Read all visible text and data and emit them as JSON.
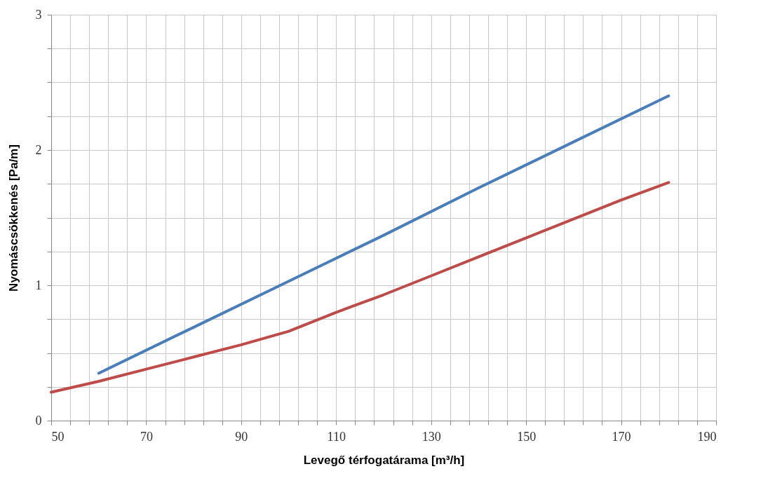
{
  "chart_data": {
    "type": "line",
    "xlabel": "Levegő térfogatárama [m³/h]",
    "ylabel": "Nyomáscsökkenés [Pa/m]",
    "series": [
      {
        "color": "#4a7ebb",
        "x": [
          60,
          80,
          100,
          120,
          140,
          160,
          180
        ],
        "values": [
          0.35,
          0.69,
          1.03,
          1.37,
          1.72,
          2.06,
          2.4
        ]
      },
      {
        "color": "#be4b48",
        "x": [
          50,
          60,
          70,
          80,
          90,
          100,
          110,
          120,
          130,
          140,
          150,
          160,
          170,
          180
        ],
        "values": [
          0.21,
          0.29,
          0.38,
          0.47,
          0.56,
          0.66,
          0.8,
          0.93,
          1.07,
          1.21,
          1.35,
          1.49,
          1.63,
          1.76
        ]
      }
    ],
    "xlim": [
      50,
      190
    ],
    "xticks": [
      50,
      {
        "value": 54,
        "label": null
      },
      {
        "value": 58,
        "label": null
      },
      {
        "value": 62,
        "label": null
      },
      {
        "value": 66,
        "label": null
      },
      70,
      {
        "value": 74,
        "label": null
      },
      {
        "value": 78,
        "label": null
      },
      {
        "value": 82,
        "label": null
      },
      {
        "value": 86,
        "label": null
      },
      90,
      {
        "value": 94,
        "label": null
      },
      {
        "value": 98,
        "label": null
      },
      {
        "value": 102,
        "label": null
      },
      {
        "value": 106,
        "label": null
      },
      110,
      {
        "value": 114,
        "label": null
      },
      {
        "value": 118,
        "label": null
      },
      {
        "value": 122,
        "label": null
      },
      {
        "value": 126,
        "label": null
      },
      130,
      {
        "value": 134,
        "label": null
      },
      {
        "value": 138,
        "label": null
      },
      {
        "value": 142,
        "label": null
      },
      {
        "value": 146,
        "label": null
      },
      150,
      {
        "value": 154,
        "label": null
      },
      {
        "value": 158,
        "label": null
      },
      {
        "value": 162,
        "label": null
      },
      {
        "value": 166,
        "label": null
      },
      170,
      {
        "value": 174,
        "label": null
      },
      {
        "value": 178,
        "label": null
      },
      {
        "value": 182,
        "label": null
      },
      {
        "value": 186,
        "label": null
      },
      190
    ],
    "ylim": [
      0,
      3
    ],
    "yticks": [
      0,
      {
        "value": 0.25,
        "label": null
      },
      {
        "value": 0.5,
        "label": null
      },
      {
        "value": 0.75,
        "label": null
      },
      1,
      {
        "value": 1.25,
        "label": null
      },
      {
        "value": 1.5,
        "label": null
      },
      {
        "value": 1.75,
        "label": null
      },
      2,
      {
        "value": 2.25,
        "label": null
      },
      {
        "value": 2.5,
        "label": null
      },
      {
        "value": 2.75,
        "label": null
      },
      3
    ],
    "grid": true,
    "marker": "none",
    "line_style": "solid"
  }
}
